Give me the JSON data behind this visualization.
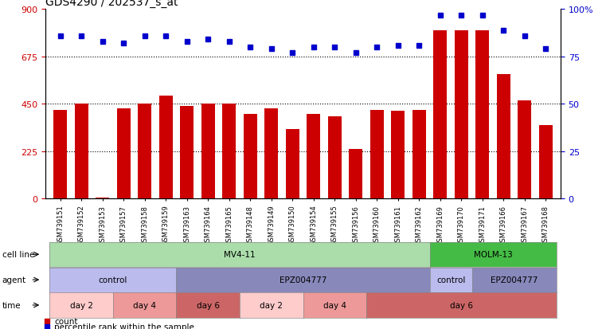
{
  "title": "GDS4290 / 202537_s_at",
  "samples": [
    "GSM739151",
    "GSM739152",
    "GSM739153",
    "GSM739157",
    "GSM739158",
    "GSM739159",
    "GSM739163",
    "GSM739164",
    "GSM739165",
    "GSM739148",
    "GSM739149",
    "GSM739150",
    "GSM739154",
    "GSM739155",
    "GSM739156",
    "GSM739160",
    "GSM739161",
    "GSM739162",
    "GSM739169",
    "GSM739170",
    "GSM739171",
    "GSM739166",
    "GSM739167",
    "GSM739168"
  ],
  "counts": [
    420,
    450,
    3,
    430,
    450,
    490,
    440,
    450,
    450,
    400,
    430,
    330,
    400,
    390,
    235,
    420,
    415,
    420,
    800,
    800,
    800,
    590,
    465,
    350
  ],
  "percentile_ranks": [
    86,
    86,
    83,
    82,
    86,
    86,
    83,
    84,
    83,
    80,
    79,
    77,
    80,
    80,
    77,
    80,
    81,
    81,
    97,
    97,
    97,
    89,
    86,
    79
  ],
  "bar_color": "#cc0000",
  "dot_color": "#0000cc",
  "ylim_left": [
    0,
    900
  ],
  "ylim_right": [
    0,
    100
  ],
  "yticks_left": [
    0,
    225,
    450,
    675,
    900
  ],
  "yticks_right": [
    0,
    25,
    50,
    75,
    100
  ],
  "cell_line_groups": [
    {
      "label": "MV4-11",
      "start": 0,
      "end": 18,
      "color": "#aaddaa"
    },
    {
      "label": "MOLM-13",
      "start": 18,
      "end": 24,
      "color": "#44bb44"
    }
  ],
  "agent_groups": [
    {
      "label": "control",
      "start": 0,
      "end": 6,
      "color": "#bbbbee"
    },
    {
      "label": "EPZ004777",
      "start": 6,
      "end": 18,
      "color": "#8888bb"
    },
    {
      "label": "control",
      "start": 18,
      "end": 20,
      "color": "#bbbbee"
    },
    {
      "label": "EPZ004777",
      "start": 20,
      "end": 24,
      "color": "#8888bb"
    }
  ],
  "time_groups": [
    {
      "label": "day 2",
      "start": 0,
      "end": 3,
      "color": "#ffcccc"
    },
    {
      "label": "day 4",
      "start": 3,
      "end": 6,
      "color": "#ee9999"
    },
    {
      "label": "day 6",
      "start": 6,
      "end": 9,
      "color": "#cc6666"
    },
    {
      "label": "day 2",
      "start": 9,
      "end": 12,
      "color": "#ffcccc"
    },
    {
      "label": "day 4",
      "start": 12,
      "end": 15,
      "color": "#ee9999"
    },
    {
      "label": "day 6",
      "start": 15,
      "end": 24,
      "color": "#cc6666"
    }
  ],
  "legend_items": [
    {
      "label": "count",
      "color": "#cc0000"
    },
    {
      "label": "percentile rank within the sample",
      "color": "#0000cc"
    }
  ],
  "row_labels": [
    "cell line",
    "agent",
    "time"
  ],
  "background_color": "#ffffff",
  "title_fontsize": 10,
  "bar_width": 0.65
}
